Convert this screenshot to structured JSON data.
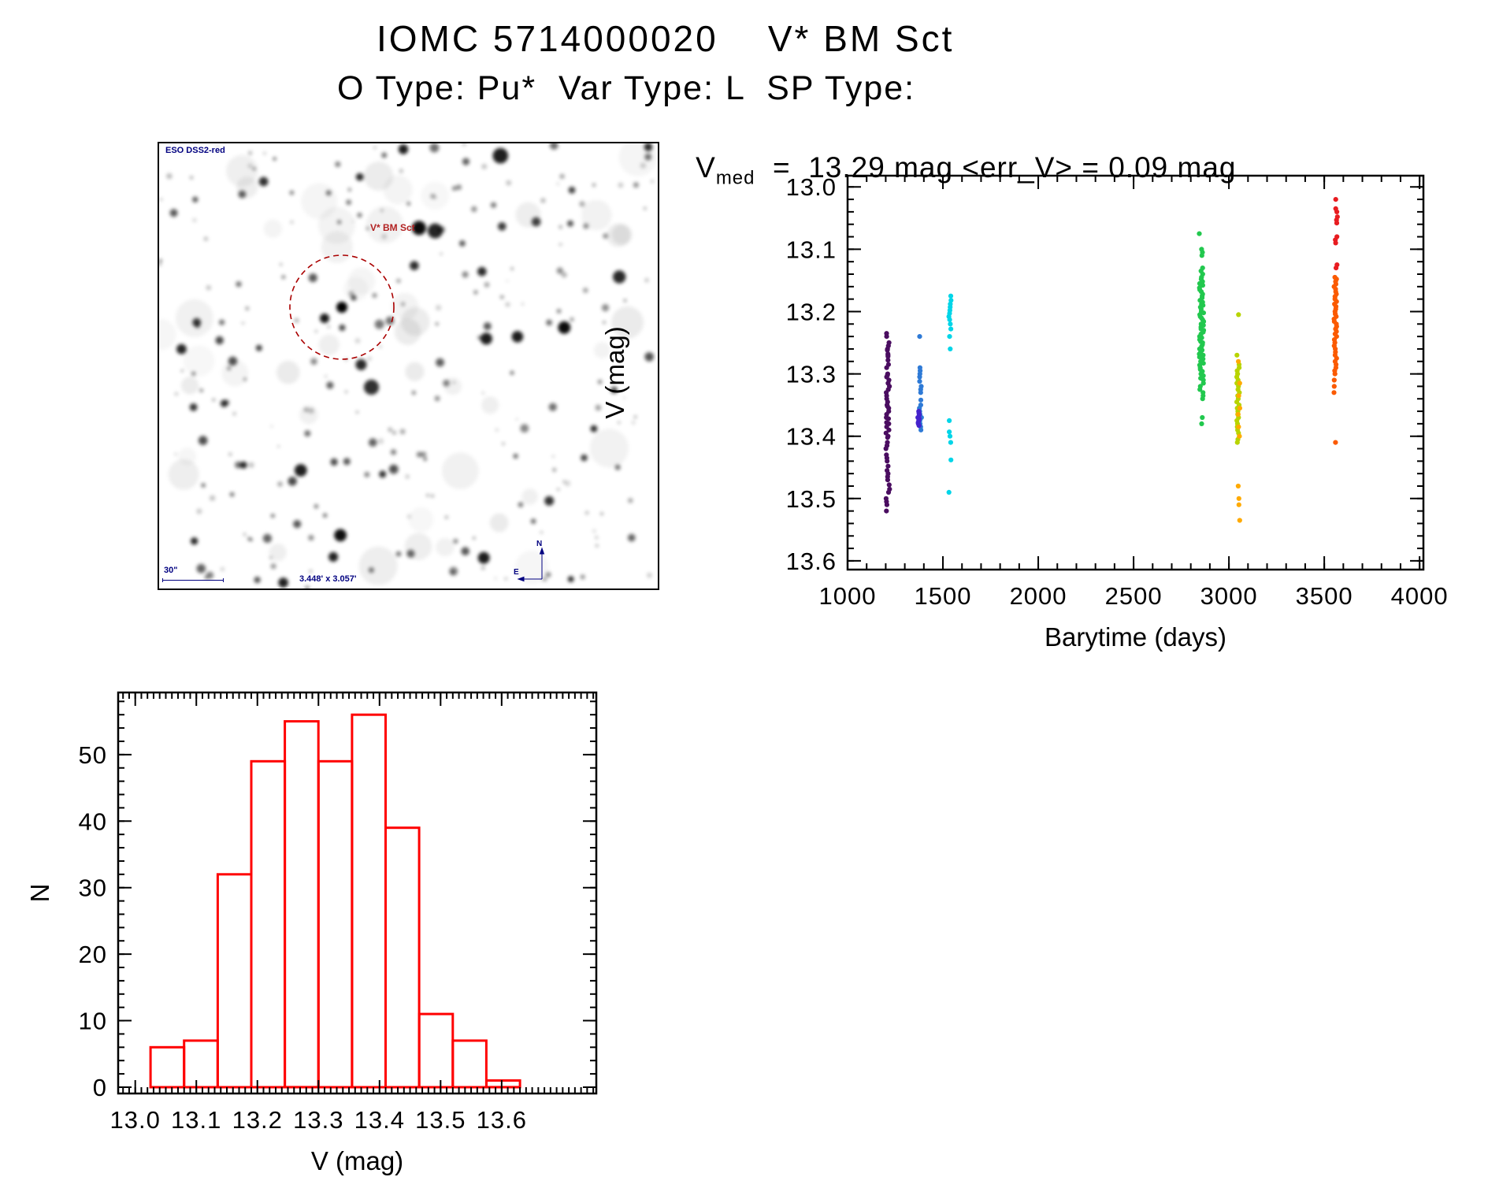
{
  "page": {
    "title": "IOMC 5714000020    V* BM Sct",
    "subtitle": "O Type: Pu*  Var Type: L  SP Type:"
  },
  "finder_image": {
    "survey_label": "ESO DSS2-red",
    "target_label": "V* BM Sct",
    "scale_bar_label": "30\"",
    "fov_label": "3.448' x 3.057'",
    "compass_north": "N",
    "compass_east": "E",
    "annotation_color": "#000080",
    "target_label_color": "#b22222",
    "circle_color": "#aa0000"
  },
  "chart_data": [
    {
      "type": "scatter",
      "title": {
        "prefix": "V",
        "prefix_sub": "med",
        "suffix": "  =  13.29 mag <err_V> = 0.09 mag"
      },
      "xlabel": "Barytime (days)",
      "ylabel": "V (mag)",
      "xlim": [
        1000,
        4020
      ],
      "ylim": [
        12.982,
        13.614
      ],
      "y_inverted": true,
      "grid": false,
      "x_tick_labels": [
        "1000",
        "1500",
        "2000",
        "2500",
        "3000",
        "3500",
        "4000"
      ],
      "y_tick_labels": [
        "13.0",
        "13.1",
        "13.2",
        "13.3",
        "13.4",
        "13.5",
        "13.6"
      ],
      "x_minor_step": 100,
      "y_minor_step": 0.02,
      "series": [
        {
          "name": "epoch1-darkviolet",
          "color": "#4a0d60",
          "barytime": 1211,
          "t_jitter": 10,
          "v": [
            13.235,
            13.24,
            13.25,
            13.255,
            13.26,
            13.262,
            13.268,
            13.27,
            13.272,
            13.278,
            13.285,
            13.29,
            13.3,
            13.302,
            13.305,
            13.31,
            13.315,
            13.32,
            13.325,
            13.33,
            13.335,
            13.34,
            13.345,
            13.35,
            13.352,
            13.355,
            13.36,
            13.365,
            13.37,
            13.372,
            13.378,
            13.38,
            13.385,
            13.39,
            13.395,
            13.4,
            13.402,
            13.41,
            13.415,
            13.42,
            13.43,
            13.435,
            13.44,
            13.448,
            13.455,
            13.46,
            13.465,
            13.47,
            13.478,
            13.485,
            13.49,
            13.5,
            13.505,
            13.51,
            13.52
          ]
        },
        {
          "name": "epoch2-blue",
          "color": "#2e7ad6",
          "barytime": 1383,
          "t_jitter": 7,
          "v": [
            13.24,
            13.29,
            13.295,
            13.3,
            13.305,
            13.312,
            13.32,
            13.325,
            13.33,
            13.342,
            13.35,
            13.355,
            13.36,
            13.365,
            13.37,
            13.375,
            13.38,
            13.385,
            13.39
          ]
        },
        {
          "name": "epoch2-indigo-clump",
          "color": "#4422cc",
          "barytime": 1372,
          "t_jitter": 5,
          "v": [
            13.36,
            13.363,
            13.366,
            13.37,
            13.372,
            13.375,
            13.378,
            13.38,
            13.383
          ]
        },
        {
          "name": "epoch3-cyan",
          "color": "#00d5e8",
          "barytime": 1537,
          "t_jitter": 6,
          "v": [
            13.175,
            13.182,
            13.188,
            13.193,
            13.198,
            13.203,
            13.208,
            13.213,
            13.22,
            13.228,
            13.24,
            13.26,
            13.375,
            13.393,
            13.4,
            13.41,
            13.438,
            13.49
          ]
        },
        {
          "name": "epoch4-green",
          "color": "#22c84e",
          "barytime": 2857,
          "t_jitter": 13,
          "v": [
            13.075,
            13.1,
            13.105,
            13.11,
            13.13,
            13.135,
            13.14,
            13.145,
            13.148,
            13.152,
            13.155,
            13.158,
            13.162,
            13.165,
            13.168,
            13.172,
            13.175,
            13.178,
            13.182,
            13.185,
            13.188,
            13.19,
            13.193,
            13.196,
            13.2,
            13.202,
            13.205,
            13.208,
            13.21,
            13.213,
            13.216,
            13.22,
            13.222,
            13.225,
            13.228,
            13.23,
            13.233,
            13.236,
            13.24,
            13.242,
            13.245,
            13.248,
            13.25,
            13.253,
            13.256,
            13.26,
            13.262,
            13.265,
            13.268,
            13.27,
            13.273,
            13.276,
            13.28,
            13.283,
            13.286,
            13.29,
            13.293,
            13.296,
            13.3,
            13.303,
            13.307,
            13.31,
            13.315,
            13.32,
            13.325,
            13.33,
            13.335,
            13.34,
            13.37,
            13.38
          ]
        },
        {
          "name": "epoch5-yellowgreen",
          "color": "#b8d400",
          "barytime": 3048,
          "t_jitter": 7,
          "v": [
            13.205,
            13.27,
            13.285,
            13.29,
            13.295,
            13.3,
            13.305,
            13.31,
            13.315,
            13.32,
            13.325,
            13.33,
            13.335,
            13.34,
            13.345,
            13.35,
            13.355,
            13.36,
            13.365,
            13.37,
            13.375,
            13.38,
            13.385,
            13.39,
            13.395,
            13.4,
            13.405,
            13.41
          ]
        },
        {
          "name": "epoch5-orange",
          "color": "#ffaa00",
          "barytime": 3052,
          "t_jitter": 7,
          "v": [
            13.28,
            13.315,
            13.335,
            13.355,
            13.365,
            13.385,
            13.4,
            13.48,
            13.5,
            13.51,
            13.535
          ]
        },
        {
          "name": "epoch6-red",
          "color": "#e81c20",
          "barytime": 3562,
          "t_jitter": 7,
          "v": [
            13.02,
            13.035,
            13.04,
            13.048,
            13.053,
            13.058,
            13.08,
            13.085,
            13.09,
            13.125,
            13.13
          ]
        },
        {
          "name": "epoch6-orangered",
          "color": "#fb5a00",
          "barytime": 3558,
          "t_jitter": 7,
          "v": [
            13.145,
            13.148,
            13.152,
            13.156,
            13.16,
            13.164,
            13.168,
            13.172,
            13.176,
            13.18,
            13.184,
            13.188,
            13.192,
            13.196,
            13.2,
            13.204,
            13.208,
            13.212,
            13.216,
            13.22,
            13.224,
            13.228,
            13.232,
            13.236,
            13.24,
            13.245,
            13.25,
            13.255,
            13.26,
            13.265,
            13.27,
            13.275,
            13.28,
            13.285,
            13.29,
            13.295,
            13.3,
            13.31,
            13.32,
            13.33,
            13.41
          ]
        }
      ]
    },
    {
      "type": "bar",
      "title": "",
      "xlabel": "V (mag)",
      "ylabel": "N",
      "bar_color": "#ff0000",
      "bin_start": 13.025,
      "bin_width": 0.055,
      "counts": [
        6,
        7,
        32,
        49,
        55,
        49,
        56,
        39,
        11,
        7,
        1
      ],
      "xlim": [
        12.972,
        13.755
      ],
      "ylim": [
        -0.95,
        59.34
      ],
      "x_tick_labels": [
        "13.0",
        "13.1",
        "13.2",
        "13.3",
        "13.4",
        "13.5",
        "13.6"
      ],
      "y_tick_labels": [
        "0",
        "10",
        "20",
        "30",
        "40",
        "50"
      ],
      "x_minor_step": 0.01,
      "y_minor_step": 2
    }
  ]
}
